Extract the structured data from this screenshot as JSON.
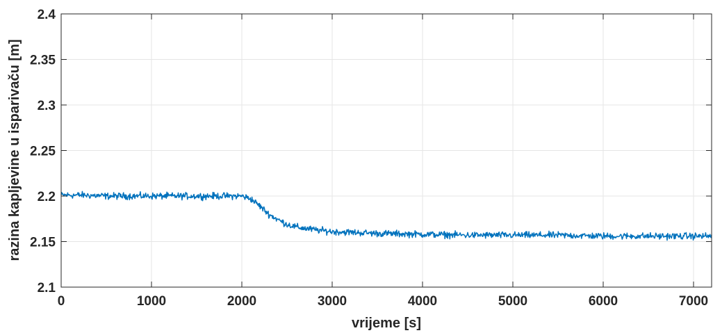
{
  "chart_data": {
    "type": "line",
    "xlabel": "vrijeme [s]",
    "ylabel": "razina kapljevine u isparivaču [m]",
    "xlim": [
      0,
      7200
    ],
    "ylim": [
      2.1,
      2.4
    ],
    "x_ticks": [
      "0",
      "1000",
      "2000",
      "3000",
      "4000",
      "5000",
      "6000",
      "7000"
    ],
    "y_ticks": [
      "2.1",
      "2.15",
      "2.2",
      "2.25",
      "2.3",
      "2.35",
      "2.4"
    ],
    "grid": true,
    "series": [
      {
        "color": "#0072BD",
        "x": [
          0,
          250,
          500,
          750,
          1000,
          1250,
          1500,
          1750,
          2000,
          2100,
          2200,
          2300,
          2400,
          2500,
          2600,
          2800,
          3000,
          3500,
          4000,
          4500,
          5000,
          5500,
          6000,
          6500,
          7000,
          7200
        ],
        "values": [
          2.201,
          2.201,
          2.2,
          2.2,
          2.2,
          2.2,
          2.2,
          2.2,
          2.2,
          2.197,
          2.189,
          2.18,
          2.174,
          2.169,
          2.166,
          2.163,
          2.161,
          2.159,
          2.158,
          2.157,
          2.157,
          2.157,
          2.156,
          2.156,
          2.156,
          2.156
        ],
        "noise_amplitude": 0.004
      }
    ]
  }
}
